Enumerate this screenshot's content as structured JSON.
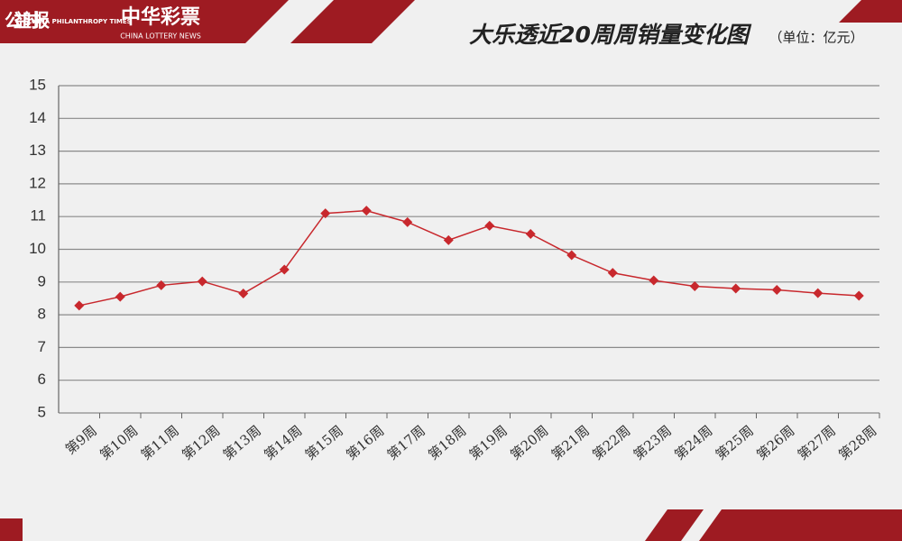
{
  "header": {
    "brand_1": "公益时报",
    "brand_1_en": "CHINA PHILANTHROPY TIMES",
    "brand_2": "中华彩票",
    "brand_2_en": "CHINA LOTTERY NEWS"
  },
  "chart_data": {
    "type": "line",
    "title": "大乐透近20周周销量变化图",
    "subtitle": "（单位：亿元）",
    "categories": [
      "第9周",
      "第10周",
      "第11周",
      "第12周",
      "第13周",
      "第14周",
      "第15周",
      "第16周",
      "第17周",
      "第18周",
      "第19周",
      "第20周",
      "第21周",
      "第22周",
      "第23周",
      "第24周",
      "第25周",
      "第26周",
      "第27周",
      "第28周"
    ],
    "values": [
      8.28,
      8.55,
      8.9,
      9.02,
      8.65,
      9.38,
      11.1,
      11.18,
      10.83,
      10.28,
      10.72,
      10.47,
      9.82,
      9.28,
      9.05,
      8.87,
      8.8,
      8.76,
      8.66,
      8.58
    ],
    "color": "#c8282d",
    "ylim": [
      5,
      15
    ],
    "yticks": [
      5,
      6,
      7,
      8,
      9,
      10,
      11,
      12,
      13,
      14,
      15
    ],
    "grid": true
  }
}
